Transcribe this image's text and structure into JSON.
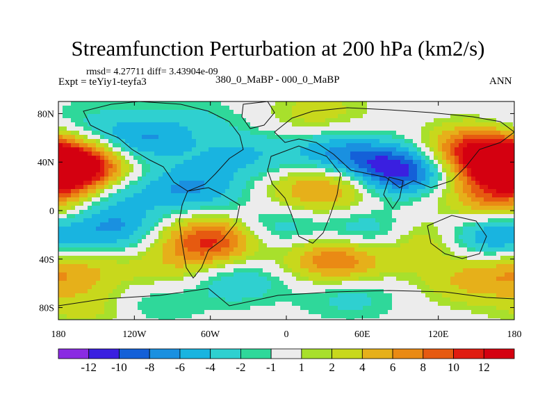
{
  "title": "Streamfunction Perturbation at 200 hPa (km2/s)",
  "stats_line": "rmsd= 4.27711  diff= 3.43904e-09",
  "experiment_line": "Expt = teYiy1-teyfa3",
  "comparison_line": "380_0_MaBP - 000_0_MaBP",
  "season": "ANN",
  "axes": {
    "lat_labels": [
      "80N",
      "40N",
      "0",
      "40S",
      "80S"
    ],
    "lat_values": [
      80,
      40,
      0,
      -40,
      -80
    ],
    "lon_labels": [
      "180",
      "120W",
      "60W",
      "0",
      "60E",
      "120E",
      "180"
    ],
    "lon_values": [
      -180,
      -120,
      -60,
      0,
      60,
      120,
      180
    ],
    "lat_range": [
      -90,
      90
    ],
    "lon_range": [
      -180,
      180
    ]
  },
  "colorbar": {
    "labels": [
      "-12",
      "-10",
      "-8",
      "-6",
      "-4",
      "-2",
      "-1",
      "1",
      "2",
      "4",
      "6",
      "8",
      "10",
      "12"
    ],
    "colors": [
      "#8a2be2",
      "#3a1fe0",
      "#1460d8",
      "#1a90e0",
      "#19b4e0",
      "#2fd0d0",
      "#2fd89a",
      "#ececec",
      "#a8e02c",
      "#c8d81c",
      "#e6b01a",
      "#ea8a14",
      "#e65a10",
      "#e01c10",
      "#d40010"
    ]
  },
  "field_centers": [
    {
      "lon": 87,
      "lat": 33,
      "value": -12
    },
    {
      "lon": 40,
      "lat": 45,
      "value": -7
    },
    {
      "lon": -115,
      "lat": 58,
      "value": -6
    },
    {
      "lon": -35,
      "lat": 45,
      "value": -4
    },
    {
      "lon": -75,
      "lat": 18,
      "value": -6
    },
    {
      "lon": -140,
      "lat": 15,
      "value": -4
    },
    {
      "lon": -135,
      "lat": -15,
      "value": -6
    },
    {
      "lon": -10,
      "lat": -15,
      "value": -4
    },
    {
      "lon": 65,
      "lat": -20,
      "value": -5
    },
    {
      "lon": 158,
      "lat": -22,
      "value": -7
    },
    {
      "lon": -40,
      "lat": -57,
      "value": -4
    },
    {
      "lon": 50,
      "lat": -70,
      "value": -3
    },
    {
      "lon": -110,
      "lat": -75,
      "value": -3
    },
    {
      "lon": -70,
      "lat": 75,
      "value": -2
    },
    {
      "lon": -165,
      "lat": 72,
      "value": -2
    },
    {
      "lon": -165,
      "lat": 35,
      "value": 11
    },
    {
      "lon": 150,
      "lat": 50,
      "value": 11
    },
    {
      "lon": 165,
      "lat": 10,
      "value": 7
    },
    {
      "lon": -60,
      "lat": -25,
      "value": 11
    },
    {
      "lon": 40,
      "lat": -40,
      "value": 9
    },
    {
      "lon": 20,
      "lat": 15,
      "value": 4
    },
    {
      "lon": 40,
      "lat": 25,
      "value": 5
    },
    {
      "lon": 110,
      "lat": -25,
      "value": 5
    },
    {
      "lon": -170,
      "lat": -50,
      "value": 5
    },
    {
      "lon": 145,
      "lat": -58,
      "value": 4
    },
    {
      "lon": 25,
      "lat": 80,
      "value": 3
    },
    {
      "lon": -150,
      "lat": -80,
      "value": 3
    },
    {
      "lon": 180,
      "lat": 35,
      "value": 10
    },
    {
      "lon": -95,
      "lat": -50,
      "value": 3
    }
  ]
}
